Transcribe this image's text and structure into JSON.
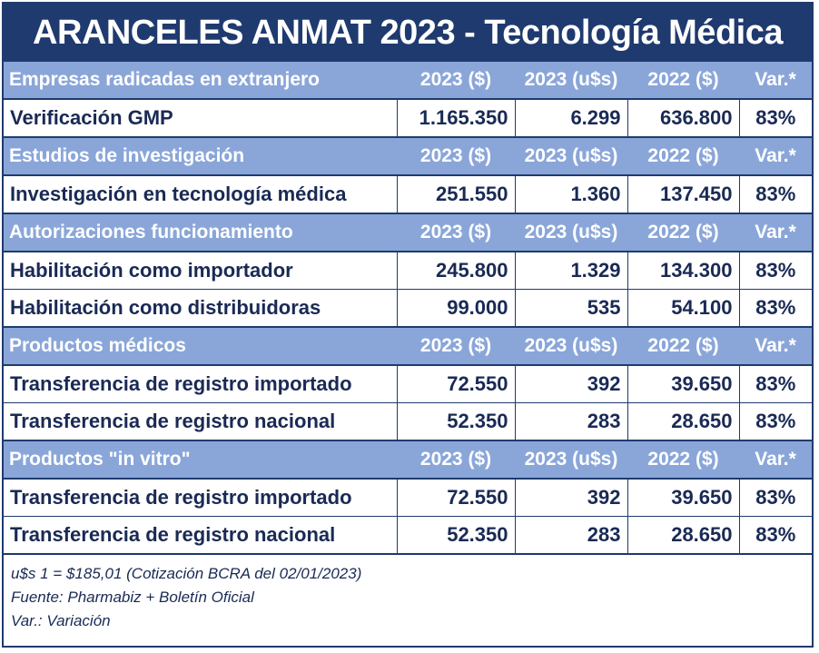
{
  "title": "ARANCELES ANMAT 2023 - Tecnología Médica",
  "sections": [
    {
      "header": [
        "Empresas radicadas en extranjero",
        "2023 ($)",
        "2023 (u$s)",
        "2022 ($)",
        "Var.*"
      ],
      "rows": [
        [
          "Verificación GMP",
          "1.165.350",
          "6.299",
          "636.800",
          "83%"
        ]
      ]
    },
    {
      "header": [
        "Estudios de investigación",
        "2023 ($)",
        "2023 (u$s)",
        "2022 ($)",
        "Var.*"
      ],
      "rows": [
        [
          "Investigación en tecnología médica",
          "251.550",
          "1.360",
          "137.450",
          "83%"
        ]
      ]
    },
    {
      "header": [
        "Autorizaciones funcionamiento",
        "2023 ($)",
        "2023 (u$s)",
        "2022 ($)",
        "Var.*"
      ],
      "rows": [
        [
          "Habilitación como importador",
          "245.800",
          "1.329",
          "134.300",
          "83%"
        ],
        [
          "Habilitación como distribuidoras",
          "99.000",
          "535",
          "54.100",
          "83%"
        ]
      ]
    },
    {
      "header": [
        "Productos médicos",
        "2023 ($)",
        "2023 (u$s)",
        "2022 ($)",
        "Var.*"
      ],
      "rows": [
        [
          "Transferencia de registro importado",
          "72.550",
          "392",
          "39.650",
          "83%"
        ],
        [
          "Transferencia de registro nacional",
          "52.350",
          "283",
          "28.650",
          "83%"
        ]
      ]
    },
    {
      "header": [
        "Productos \"in vitro\"",
        "2023 ($)",
        "2023 (u$s)",
        "2022 ($)",
        "Var.*"
      ],
      "rows": [
        [
          "Transferencia de registro importado",
          "72.550",
          "392",
          "39.650",
          "83%"
        ],
        [
          "Transferencia de registro nacional",
          "52.350",
          "283",
          "28.650",
          "83%"
        ]
      ]
    }
  ],
  "notes": [
    "u$s 1 = $185,01 (Cotización BCRA del 02/01/2023)",
    "Fuente: Pharmabiz + Boletín Oficial",
    "Var.: Variación"
  ],
  "colors": {
    "title_bg": "#1f3a6e",
    "section_bg": "#8aa6d9",
    "text": "#1a2a55"
  }
}
